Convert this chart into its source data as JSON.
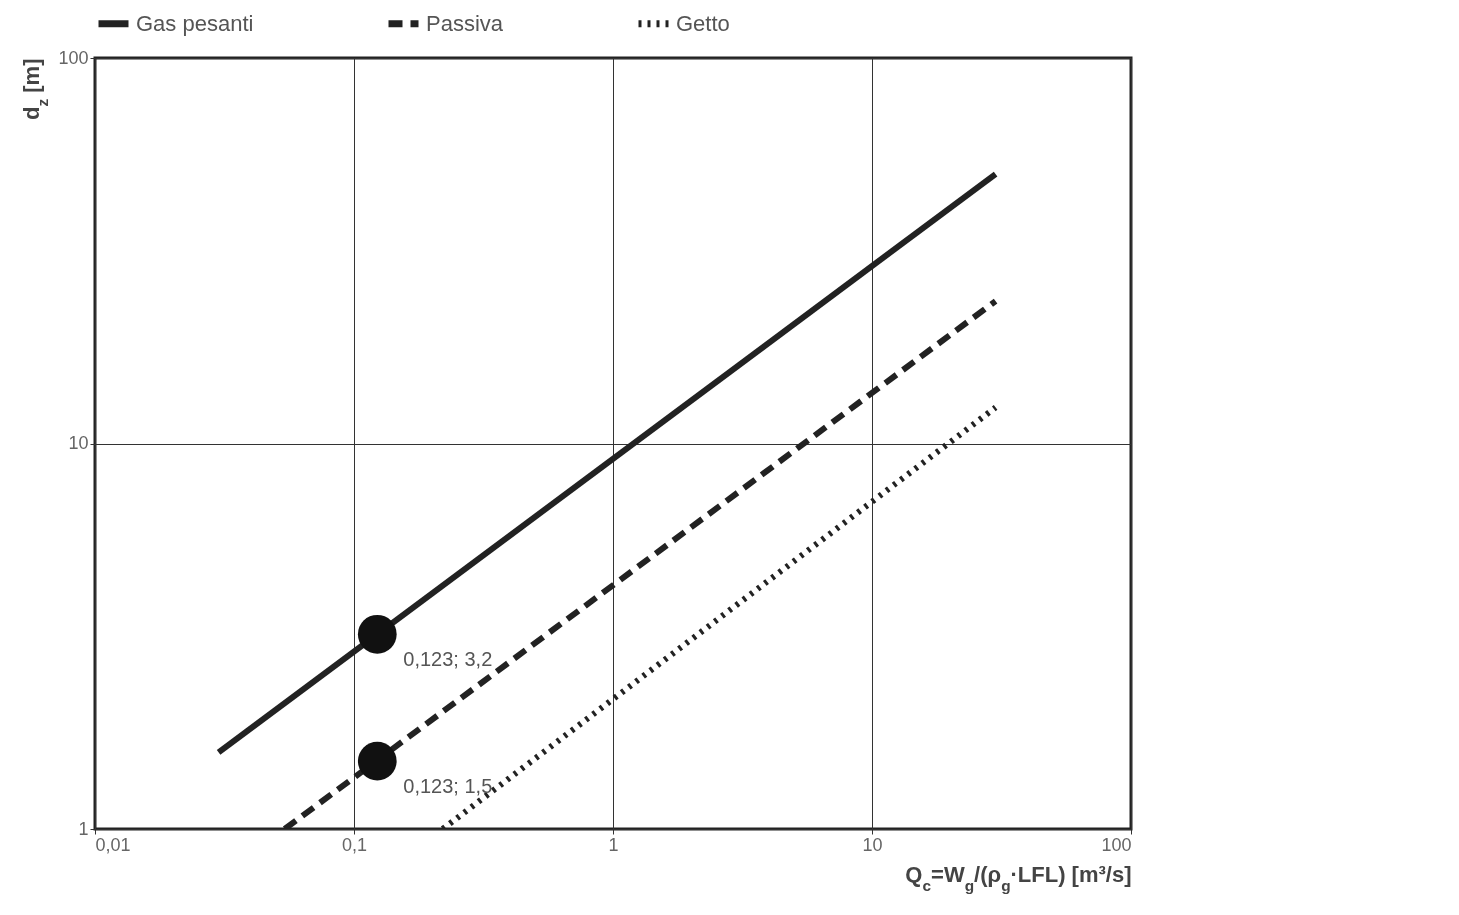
{
  "chart_data": {
    "type": "line",
    "xlabel": "Q$_{c}$=W$_{g}$/(ρ$_{g}$·LFL) [m³/s]",
    "ylabel": "d$_{z}$ [m]",
    "log": "xy",
    "grid": true,
    "legend": "top",
    "xlim": [
      0.01,
      100
    ],
    "xticks": [
      {
        "value": 0.01,
        "label": "0,01"
      },
      {
        "value": 0.1,
        "label": "0,1"
      },
      1,
      10,
      100
    ],
    "ylim": [
      1,
      100
    ],
    "yticks": [
      1,
      10,
      100
    ],
    "series": [
      {
        "name": "Gas pesanti",
        "color": "#222222",
        "line_style": "solid",
        "x": [
          0.03,
          30
        ],
        "values": [
          1.58,
          50
        ]
      },
      {
        "name": "Passiva",
        "color": "#222222",
        "line_style": "dashed",
        "x": [
          0.054,
          30
        ],
        "values": [
          1,
          23.4
        ]
      },
      {
        "name": "Getto",
        "color": "#222222",
        "line_style": "dotted",
        "x": [
          0.22,
          30
        ],
        "values": [
          1,
          12.4
        ]
      },
      {
        "type": "scatter",
        "color": "#111111",
        "marker": "circle",
        "x": [
          0.123,
          0.123
        ],
        "values": [
          3.2,
          1.5
        ],
        "value_labels": [
          "0,123; 3,2",
          "0,123; 1,5"
        ]
      }
    ]
  }
}
